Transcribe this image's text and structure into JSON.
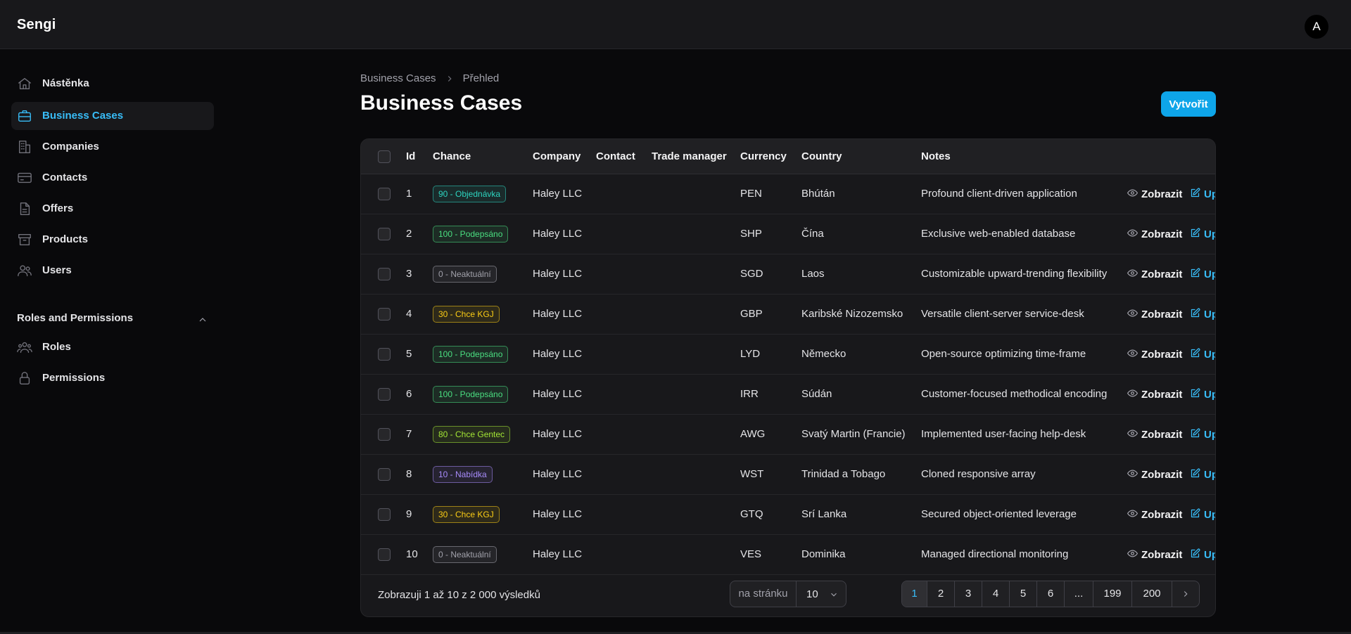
{
  "app": {
    "name": "Sengi",
    "avatar_initial": "A"
  },
  "sidebar": {
    "items": [
      {
        "label": "Nástěnka",
        "icon": "home-icon"
      },
      {
        "label": "Business Cases",
        "icon": "briefcase-icon",
        "active": true
      },
      {
        "label": "Companies",
        "icon": "building-icon"
      },
      {
        "label": "Contacts",
        "icon": "card-icon"
      },
      {
        "label": "Offers",
        "icon": "document-icon"
      },
      {
        "label": "Products",
        "icon": "archive-icon"
      },
      {
        "label": "Users",
        "icon": "users-icon"
      }
    ],
    "group": {
      "label": "Roles and Permissions",
      "items": [
        {
          "label": "Roles",
          "icon": "user-group-icon"
        },
        {
          "label": "Permissions",
          "icon": "lock-icon"
        }
      ]
    }
  },
  "breadcrumb": {
    "root": "Business Cases",
    "current": "Přehled"
  },
  "page": {
    "title": "Business Cases",
    "create_label": "Vytvořit"
  },
  "table": {
    "headers": {
      "id": "Id",
      "chance": "Chance",
      "company": "Company",
      "contact": "Contact",
      "trade_manager": "Trade manager",
      "currency": "Currency",
      "country": "Country",
      "notes": "Notes"
    },
    "view_label": "Zobrazit",
    "edit_label": "Up",
    "rows": [
      {
        "id": "1",
        "chance": "90 - Objednávka",
        "company": "Haley LLC",
        "contact": "",
        "trade_manager": "",
        "currency": "PEN",
        "country": "Bhútán",
        "notes": "Profound client-driven application"
      },
      {
        "id": "2",
        "chance": "100 - Podepsáno",
        "company": "Haley LLC",
        "contact": "",
        "trade_manager": "",
        "currency": "SHP",
        "country": "Čína",
        "notes": "Exclusive web-enabled database"
      },
      {
        "id": "3",
        "chance": "0 - Neaktuální",
        "company": "Haley LLC",
        "contact": "",
        "trade_manager": "",
        "currency": "SGD",
        "country": "Laos",
        "notes": "Customizable upward-trending flexibility"
      },
      {
        "id": "4",
        "chance": "30 - Chce KGJ",
        "company": "Haley LLC",
        "contact": "",
        "trade_manager": "",
        "currency": "GBP",
        "country": "Karibské Nizozemsko",
        "notes": "Versatile client-server service-desk"
      },
      {
        "id": "5",
        "chance": "100 - Podepsáno",
        "company": "Haley LLC",
        "contact": "",
        "trade_manager": "",
        "currency": "LYD",
        "country": "Německo",
        "notes": "Open-source optimizing time-frame"
      },
      {
        "id": "6",
        "chance": "100 - Podepsáno",
        "company": "Haley LLC",
        "contact": "",
        "trade_manager": "",
        "currency": "IRR",
        "country": "Súdán",
        "notes": "Customer-focused methodical encoding"
      },
      {
        "id": "7",
        "chance": "80 - Chce Gentec",
        "company": "Haley LLC",
        "contact": "",
        "trade_manager": "",
        "currency": "AWG",
        "country": "Svatý Martin (Francie)",
        "notes": "Implemented user-facing help-desk"
      },
      {
        "id": "8",
        "chance": "10 - Nabídka",
        "company": "Haley LLC",
        "contact": "",
        "trade_manager": "",
        "currency": "WST",
        "country": "Trinidad a Tobago",
        "notes": "Cloned responsive array"
      },
      {
        "id": "9",
        "chance": "30 - Chce KGJ",
        "company": "Haley LLC",
        "contact": "",
        "trade_manager": "",
        "currency": "GTQ",
        "country": "Srí Lanka",
        "notes": "Secured object-oriented leverage"
      },
      {
        "id": "10",
        "chance": "0 - Neaktuální",
        "company": "Haley LLC",
        "contact": "",
        "trade_manager": "",
        "currency": "VES",
        "country": "Dominika",
        "notes": "Managed directional monitoring"
      }
    ]
  },
  "chance_colors": {
    "90": "#2dd4bf",
    "100": "#4ade80",
    "0": "#a1a1aa",
    "30": "#facc15",
    "80": "#a3e635",
    "10": "#a78bfa"
  },
  "footer": {
    "summary": "Zobrazuji 1 až 10 z 2 000 výsledků",
    "per_page_label": "na stránku",
    "per_page_value": "10",
    "pages": [
      "1",
      "2",
      "3",
      "4",
      "5",
      "6",
      "...",
      "199",
      "200"
    ],
    "current_page": "1"
  },
  "colors": {
    "accent": "#0ea5e9",
    "accent_text": "#38bdf8"
  }
}
